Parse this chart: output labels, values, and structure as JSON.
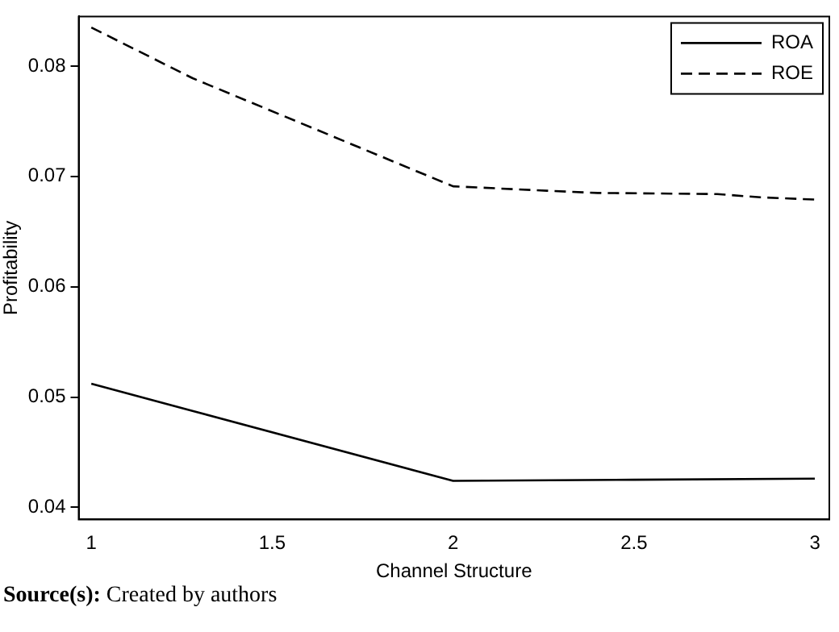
{
  "chart_data": {
    "type": "line",
    "xlabel": "Channel Structure",
    "ylabel": "Profitability",
    "xlim": [
      0.965,
      3.04
    ],
    "xticks": [
      1,
      1.5,
      2,
      2.5,
      3
    ],
    "ylim": [
      0.0389,
      0.0845
    ],
    "yticks": [
      0.04,
      0.05,
      0.06,
      0.07,
      0.08
    ],
    "series": [
      {
        "name": "ROA",
        "color": "#000000",
        "line_style": "solid",
        "x": [
          1,
          2,
          2.5,
          3
        ],
        "values": [
          0.0512,
          0.0424,
          0.0425,
          0.0426
        ]
      },
      {
        "name": "ROE",
        "color": "#000000",
        "line_style": "dashed",
        "x": [
          1,
          1.28,
          2,
          2.26,
          2.4,
          2.73,
          2.85,
          3
        ],
        "values": [
          0.0835,
          0.0789,
          0.0691,
          0.0687,
          0.0685,
          0.0684,
          0.0681,
          0.0679
        ]
      }
    ],
    "grid": false,
    "legend": "top right",
    "marker": "none",
    "annotations": [
      "Source(s): Created by authors"
    ]
  }
}
